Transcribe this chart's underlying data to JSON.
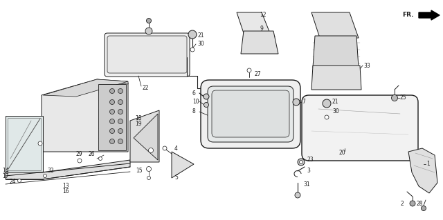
{
  "bg_color": "#ffffff",
  "line_color": "#1a1a1a",
  "fig_width": 6.4,
  "fig_height": 3.19,
  "dpi": 100
}
